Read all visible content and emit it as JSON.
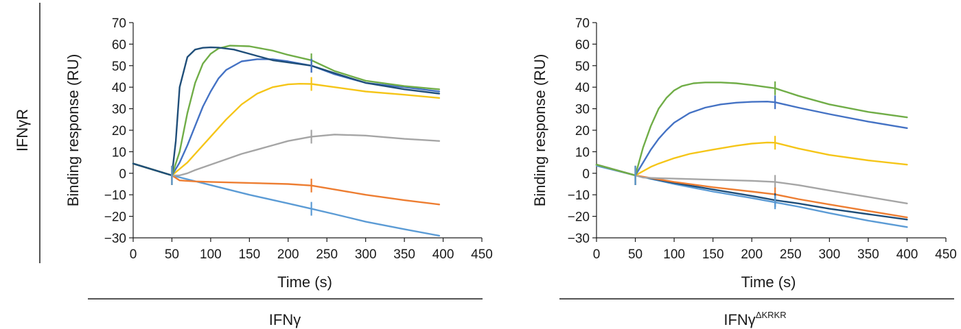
{
  "figure": {
    "row_label": "IFNγR",
    "groups": [
      {
        "label": "IFNγ",
        "superscript": ""
      },
      {
        "label": "IFNγ",
        "superscript": "ΔKRKR"
      }
    ]
  },
  "chart_data": [
    {
      "type": "line",
      "title": "",
      "xlabel": "Time (s)",
      "ylabel": "Binding response (RU)",
      "xlim": [
        0,
        450
      ],
      "ylim": [
        -30,
        70
      ],
      "xticks": [
        0,
        50,
        100,
        150,
        200,
        250,
        300,
        350,
        400,
        450
      ],
      "yticks": [
        -30,
        -20,
        -10,
        0,
        10,
        20,
        30,
        40,
        50,
        60,
        70
      ],
      "injection_markers": [
        50,
        230
      ],
      "series": [
        {
          "name": "dark-blue",
          "color": "#1f4e79",
          "x": [
            0,
            50,
            55,
            60,
            70,
            80,
            90,
            100,
            110,
            130,
            150,
            180,
            200,
            230,
            260,
            300,
            350,
            395
          ],
          "y": [
            4.5,
            -1,
            15,
            40,
            54,
            57.5,
            58.3,
            58.5,
            58.4,
            57.5,
            55.5,
            52.5,
            51.5,
            50,
            46.5,
            42,
            39,
            37
          ]
        },
        {
          "name": "green",
          "color": "#70ad47",
          "x": [
            0,
            50,
            60,
            70,
            80,
            90,
            100,
            110,
            125,
            150,
            180,
            200,
            230,
            260,
            300,
            350,
            395
          ],
          "y": [
            4.5,
            -1,
            10,
            28,
            42,
            51,
            55.5,
            58,
            59.3,
            59,
            57,
            55,
            52.5,
            47.5,
            43,
            40.5,
            39
          ]
        },
        {
          "name": "mid-blue",
          "color": "#4472c4",
          "x": [
            0,
            50,
            60,
            70,
            80,
            90,
            100,
            110,
            120,
            140,
            160,
            180,
            200,
            230,
            260,
            300,
            350,
            395
          ],
          "y": [
            4.5,
            -1,
            5,
            13,
            22,
            31,
            38,
            44,
            48,
            52,
            53,
            53,
            52,
            50,
            46,
            42,
            40,
            38
          ]
        },
        {
          "name": "yellow",
          "color": "#f5c518",
          "x": [
            0,
            50,
            60,
            70,
            80,
            100,
            120,
            140,
            160,
            180,
            200,
            215,
            230,
            260,
            300,
            350,
            395
          ],
          "y": [
            4.5,
            -1,
            2,
            5,
            9,
            17,
            25,
            32,
            37,
            40,
            41.3,
            41.6,
            41.5,
            40,
            38,
            36.5,
            35
          ]
        },
        {
          "name": "gray",
          "color": "#a5a5a5",
          "x": [
            0,
            50,
            60,
            70,
            80,
            100,
            120,
            140,
            160,
            180,
            200,
            230,
            260,
            300,
            350,
            395
          ],
          "y": [
            4.5,
            -1,
            -1,
            0,
            1.5,
            4,
            6.5,
            9,
            11,
            13,
            15,
            17,
            18,
            17.5,
            16,
            15
          ]
        },
        {
          "name": "orange",
          "color": "#ed7d31",
          "x": [
            0,
            50,
            60,
            80,
            100,
            150,
            200,
            230,
            260,
            300,
            350,
            395
          ],
          "y": [
            4.5,
            -1,
            -3.3,
            -3.8,
            -4,
            -4.5,
            -5,
            -5.7,
            -7.5,
            -10,
            -12.5,
            -14.5
          ]
        },
        {
          "name": "light-blue",
          "color": "#5b9bd5",
          "x": [
            0,
            50,
            100,
            150,
            200,
            230,
            260,
            300,
            350,
            395
          ],
          "y": [
            4.5,
            -1,
            -5.5,
            -10,
            -14,
            -16.5,
            -19,
            -22.5,
            -26,
            -29
          ]
        }
      ]
    },
    {
      "type": "line",
      "title": "",
      "xlabel": "Time (s)",
      "ylabel": "Binding response (RU)",
      "xlim": [
        0,
        450
      ],
      "ylim": [
        -30,
        70
      ],
      "xticks": [
        0,
        50,
        100,
        150,
        200,
        250,
        300,
        350,
        400,
        450
      ],
      "yticks": [
        -30,
        -20,
        -10,
        0,
        10,
        20,
        30,
        40,
        50,
        60,
        70
      ],
      "injection_markers": [
        50,
        230
      ],
      "series": [
        {
          "name": "green",
          "color": "#70ad47",
          "x": [
            0,
            50,
            60,
            70,
            80,
            90,
            100,
            110,
            125,
            140,
            160,
            180,
            200,
            230,
            260,
            300,
            350,
            400
          ],
          "y": [
            4,
            -1,
            12,
            22,
            30,
            35,
            38.5,
            40.5,
            41.8,
            42.2,
            42.2,
            41.8,
            41,
            39.5,
            36,
            32,
            28.5,
            26
          ]
        },
        {
          "name": "mid-blue",
          "color": "#4472c4",
          "x": [
            0,
            50,
            60,
            70,
            80,
            90,
            100,
            120,
            140,
            160,
            180,
            200,
            220,
            230,
            260,
            300,
            350,
            400
          ],
          "y": [
            4,
            -1,
            5,
            11,
            16,
            20,
            23.5,
            28,
            30.5,
            32,
            32.8,
            33.2,
            33.3,
            33,
            30.5,
            27.5,
            24,
            21
          ]
        },
        {
          "name": "yellow",
          "color": "#f5c518",
          "x": [
            0,
            50,
            60,
            70,
            80,
            100,
            120,
            150,
            180,
            200,
            220,
            230,
            260,
            300,
            350,
            400
          ],
          "y": [
            4,
            -1,
            1,
            3,
            4.5,
            7,
            9,
            11,
            12.8,
            13.8,
            14.3,
            14.2,
            11.5,
            8.5,
            6,
            4
          ]
        },
        {
          "name": "gray",
          "color": "#a5a5a5",
          "x": [
            0,
            50,
            60,
            80,
            100,
            150,
            200,
            230,
            260,
            300,
            350,
            400
          ],
          "y": [
            4,
            -1,
            -2,
            -2.3,
            -2.5,
            -3,
            -3.5,
            -4,
            -5.5,
            -8,
            -11,
            -14
          ]
        },
        {
          "name": "orange",
          "color": "#ed7d31",
          "x": [
            0,
            50,
            100,
            150,
            200,
            230,
            260,
            300,
            350,
            400
          ],
          "y": [
            4,
            -1,
            -4,
            -6.5,
            -8.5,
            -9.8,
            -12,
            -14.5,
            -17.5,
            -20.5
          ]
        },
        {
          "name": "dark-blue",
          "color": "#1f4e79",
          "x": [
            0,
            50,
            100,
            150,
            200,
            230,
            260,
            300,
            350,
            400
          ],
          "y": [
            4,
            -1,
            -4.5,
            -7.5,
            -10.5,
            -12.5,
            -14,
            -16.5,
            -19,
            -21.5
          ]
        },
        {
          "name": "light-blue",
          "color": "#5b9bd5",
          "x": [
            0,
            50,
            100,
            150,
            200,
            230,
            260,
            300,
            350,
            400
          ],
          "y": [
            3.5,
            -1,
            -5,
            -8.5,
            -11.5,
            -13.5,
            -15.5,
            -18.5,
            -22,
            -25
          ]
        }
      ]
    }
  ]
}
